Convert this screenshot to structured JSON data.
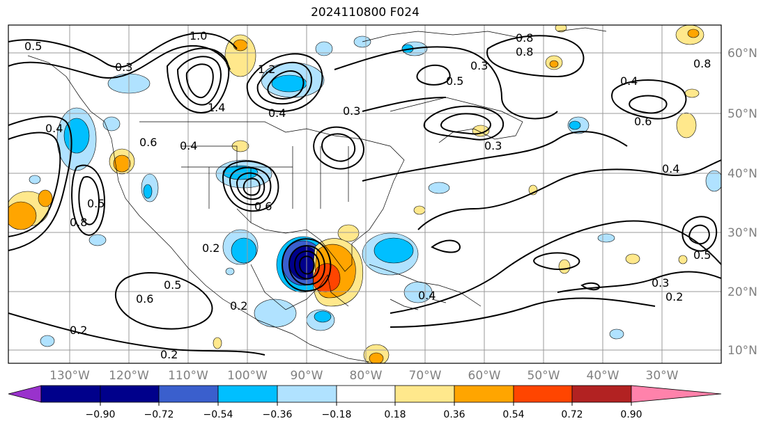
{
  "title": "2024110800 F024",
  "map": {
    "lon_labels": [
      "130°W",
      "120°W",
      "110°W",
      "100°W",
      "90°W",
      "80°W",
      "70°W",
      "60°W",
      "50°W",
      "40°W",
      "30°W"
    ],
    "lat_labels": [
      "60°N",
      "50°N",
      "40°N",
      "30°N",
      "20°N",
      "10°N"
    ],
    "contour_labels": [
      "0.5",
      "0.3",
      "1.0",
      "0.4",
      "1.2",
      "1.4",
      "0.8",
      "0.6",
      "0.5",
      "0.2",
      "0.2",
      "0.4",
      "0.3",
      "0.5",
      "0.8",
      "0.3",
      "0.2",
      "0.6",
      "0.4",
      "0.5",
      "0.8",
      "0.6",
      "0.4",
      "0.3",
      "0.2",
      "0.5",
      "0.4",
      "0.8",
      "0.6",
      "0.3",
      "0.2"
    ]
  },
  "colorbar": {
    "ticks": [
      "−0.90",
      "−0.72",
      "−0.54",
      "−0.36",
      "−0.18",
      "0.18",
      "0.36",
      "0.54",
      "0.72",
      "0.90"
    ],
    "colors": {
      "lt_n090": "#9932cc",
      "n090_n072": "#00008b",
      "n072_n054": "#3a5fcd",
      "n054_n036": "#00bfff",
      "n036_n018": "#b0e2ff",
      "n018_018": "#ffffff",
      "p018_036": "#ffe88c",
      "p036_054": "#ffa500",
      "p054_072": "#ff4500",
      "p072_090": "#b22222",
      "gt_090": "#ff82ab"
    }
  }
}
